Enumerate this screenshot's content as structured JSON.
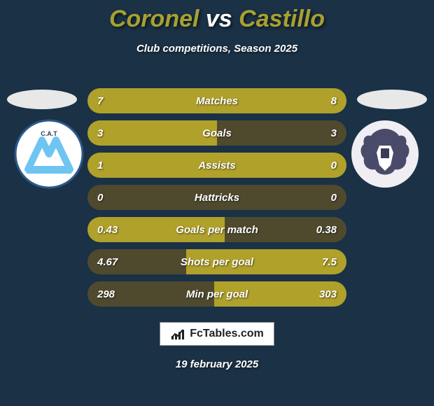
{
  "title": {
    "player_left": "Coronel",
    "vs": " vs ",
    "player_right": "Castillo",
    "color_left": "#a8a030",
    "color_vs": "#ffffff",
    "color_right": "#a8a030"
  },
  "subtitle": "Club competitions, Season 2025",
  "background_color": "#1a3146",
  "flag": {
    "color": "#e8e8e8"
  },
  "crest_left": {
    "bg": "#ffffff",
    "stripe_color": "#6fc5f2",
    "initials": "C.A.T"
  },
  "crest_right": {
    "bg": "#f1eef3",
    "shield_color": "#4a4a6a"
  },
  "stats": {
    "row_bg": "#4f4a2e",
    "accent_left": "#b0a12b",
    "accent_right": "#b0a12b",
    "rows": [
      {
        "label": "Matches",
        "left": "7",
        "right": "8",
        "fill_left_pct": 47,
        "fill_right_pct": 53
      },
      {
        "label": "Goals",
        "left": "3",
        "right": "3",
        "fill_left_pct": 50,
        "fill_right_pct": 0
      },
      {
        "label": "Assists",
        "left": "1",
        "right": "0",
        "fill_left_pct": 100,
        "fill_right_pct": 0
      },
      {
        "label": "Hattricks",
        "left": "0",
        "right": "0",
        "fill_left_pct": 0,
        "fill_right_pct": 0
      },
      {
        "label": "Goals per match",
        "left": "0.43",
        "right": "0.38",
        "fill_left_pct": 53,
        "fill_right_pct": 0
      },
      {
        "label": "Shots per goal",
        "left": "4.67",
        "right": "7.5",
        "fill_left_pct": 0,
        "fill_right_pct": 62
      },
      {
        "label": "Min per goal",
        "left": "298",
        "right": "303",
        "fill_left_pct": 0,
        "fill_right_pct": 51
      }
    ]
  },
  "logo_text": "FcTables.com",
  "date": "19 february 2025"
}
